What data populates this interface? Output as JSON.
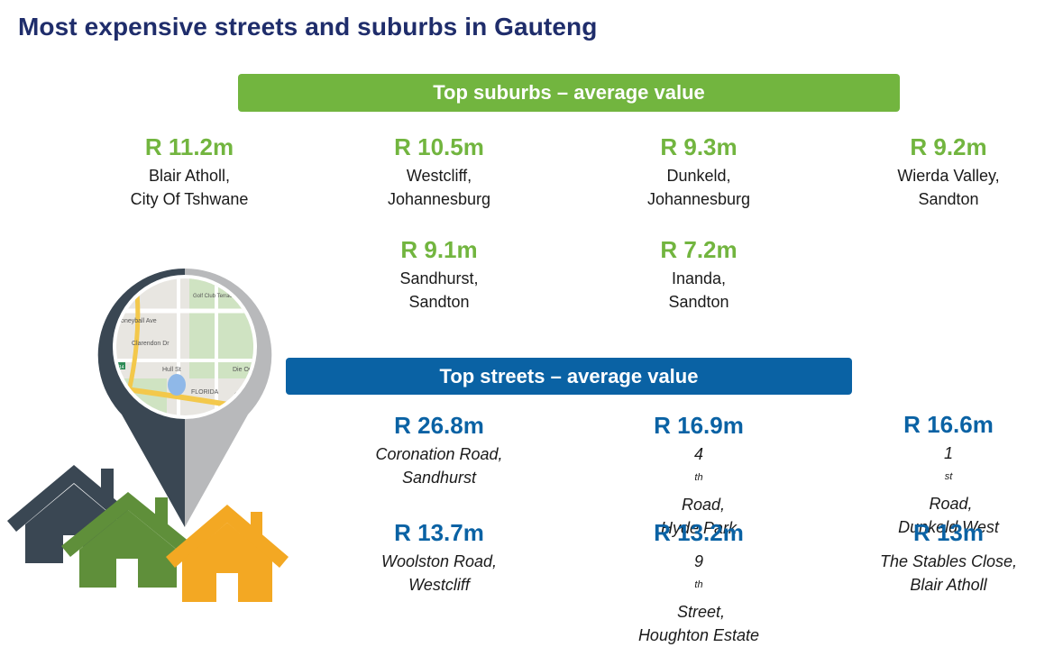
{
  "title": "Most expensive streets and suburbs in Gauteng",
  "suburbs_banner": "Top suburbs – average value",
  "streets_banner": "Top streets – average value",
  "suburbs": [
    {
      "value": "R 11.2m",
      "line1": "Blair Atholl,",
      "line2": "City Of Tshwane"
    },
    {
      "value": "R 10.5m",
      "line1": "Westcliff,",
      "line2": "Johannesburg"
    },
    {
      "value": "R 9.3m",
      "line1": "Dunkeld,",
      "line2": "Johannesburg"
    },
    {
      "value": "R 9.2m",
      "line1": "Wierda Valley,",
      "line2": "Sandton"
    },
    {
      "value": "R 9.1m",
      "line1": "Sandhurst,",
      "line2": "Sandton"
    },
    {
      "value": "R 7.2m",
      "line1": "Inanda,",
      "line2": "Sandton"
    }
  ],
  "streets": [
    {
      "value": "R 26.8m",
      "pre": "Coronation Road,",
      "sup": "",
      "post": "",
      "line2": "Sandhurst"
    },
    {
      "value": "R 16.9m",
      "pre": "4",
      "sup": "th",
      "post": "  Road,",
      "line2": "Hyde Park"
    },
    {
      "value": "R 16.6m",
      "pre": "1",
      "sup": "st",
      "post": " Road,",
      "line2": "Dunkeld West"
    },
    {
      "value": "R 13.7m",
      "pre": "Woolston Road,",
      "sup": "",
      "post": "",
      "line2": "Westcliff"
    },
    {
      "value": "R 13.2m",
      "pre": "9",
      "sup": "th",
      "post": " Street,",
      "line2": "Houghton Estate"
    },
    {
      "value": "R 13m",
      "pre": "The Stables Close,",
      "sup": "",
      "post": "",
      "line2": "Blair Atholl"
    }
  ],
  "map_labels": {
    "a": "Honeyball Ave",
    "b": "Clarendon Dr",
    "c": "Hull St",
    "d": "FLORIDA",
    "e": "Golf Club Terrace",
    "f": "Die Ou",
    "g": "6th",
    "h": "14"
  },
  "colors": {
    "title": "#1f2d6b",
    "green": "#72b53f",
    "blue": "#0a62a4",
    "house_dark": "#3a4753",
    "house_green": "#5f8f3a",
    "house_orange": "#f3a823",
    "pin_dark": "#3a4753",
    "pin_gray": "#b8b9bb"
  }
}
